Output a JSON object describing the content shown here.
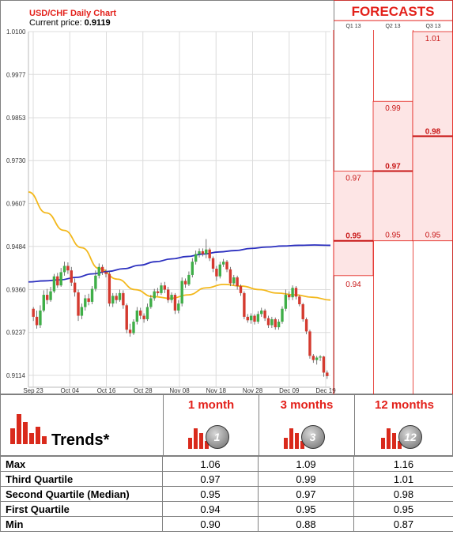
{
  "chart": {
    "title": "USD/CHF Daily Chart",
    "price_label": "Current price:",
    "price_value": "0.9119"
  },
  "forecasts": {
    "title": "FORECASTS",
    "quarters": [
      "Q1 13",
      "Q2 13",
      "Q3 13"
    ]
  },
  "chart_data": [
    {
      "type": "candlestick",
      "title": "USD/CHF Daily Chart",
      "y_ticks": [
        "1.0100",
        "0.9977",
        "0.9853",
        "0.9730",
        "0.9607",
        "0.9484",
        "0.9360",
        "0.9237",
        "0.9114"
      ],
      "x_ticks": [
        "Sep 23",
        "Oct 04",
        "Oct 16",
        "Oct 28",
        "Nov 08",
        "Nov 18",
        "Nov 28",
        "Dec 09",
        "Dec 19"
      ],
      "ylim": [
        0.908,
        1.01
      ],
      "candles": [
        [
          0.9305,
          0.9282,
          0.931,
          0.927
        ],
        [
          0.9282,
          0.9258,
          0.93,
          0.9248
        ],
        [
          0.9258,
          0.93,
          0.9315,
          0.925
        ],
        [
          0.93,
          0.9345,
          0.9358,
          0.9295
        ],
        [
          0.9345,
          0.933,
          0.9362,
          0.9318
        ],
        [
          0.933,
          0.9355,
          0.9368,
          0.9325
        ],
        [
          0.9355,
          0.9398,
          0.9405,
          0.935
        ],
        [
          0.9398,
          0.9372,
          0.9408,
          0.9365
        ],
        [
          0.9372,
          0.941,
          0.9422,
          0.9368
        ],
        [
          0.941,
          0.9428,
          0.944,
          0.94
        ],
        [
          0.9428,
          0.9415,
          0.9438,
          0.9405
        ],
        [
          0.9415,
          0.938,
          0.9425,
          0.937
        ],
        [
          0.938,
          0.9352,
          0.9392,
          0.934
        ],
        [
          0.9352,
          0.9285,
          0.936,
          0.927
        ],
        [
          0.9285,
          0.931,
          0.932,
          0.9275
        ],
        [
          0.931,
          0.9335,
          0.9345,
          0.93
        ],
        [
          0.9335,
          0.9325,
          0.9348,
          0.9315
        ],
        [
          0.9325,
          0.9362,
          0.937,
          0.9318
        ],
        [
          0.9362,
          0.94,
          0.9415,
          0.9355
        ],
        [
          0.94,
          0.9425,
          0.9435,
          0.9392
        ],
        [
          0.9425,
          0.941,
          0.9432,
          0.9402
        ],
        [
          0.941,
          0.9405,
          0.9418,
          0.9395
        ],
        [
          0.9405,
          0.932,
          0.9412,
          0.9312
        ],
        [
          0.932,
          0.9342,
          0.935,
          0.931
        ],
        [
          0.9342,
          0.933,
          0.935,
          0.932
        ],
        [
          0.933,
          0.935,
          0.936,
          0.9325
        ],
        [
          0.935,
          0.9315,
          0.9358,
          0.9305
        ],
        [
          0.9315,
          0.9245,
          0.932,
          0.9235
        ],
        [
          0.9245,
          0.9235,
          0.9262,
          0.9225
        ],
        [
          0.9235,
          0.9268,
          0.9275,
          0.923
        ],
        [
          0.9268,
          0.93,
          0.931,
          0.926
        ],
        [
          0.93,
          0.9285,
          0.9308,
          0.9275
        ],
        [
          0.9285,
          0.9275,
          0.9292,
          0.9265
        ],
        [
          0.9275,
          0.931,
          0.932,
          0.927
        ],
        [
          0.931,
          0.9335,
          0.9345,
          0.9305
        ],
        [
          0.9335,
          0.9355,
          0.9362,
          0.9328
        ],
        [
          0.9355,
          0.935,
          0.9365,
          0.9342
        ],
        [
          0.935,
          0.9372,
          0.938,
          0.9345
        ],
        [
          0.9372,
          0.936,
          0.9382,
          0.935
        ],
        [
          0.936,
          0.933,
          0.9368,
          0.9322
        ],
        [
          0.933,
          0.9345,
          0.9352,
          0.9322
        ],
        [
          0.9345,
          0.93,
          0.935,
          0.929
        ],
        [
          0.93,
          0.932,
          0.933,
          0.9292
        ],
        [
          0.932,
          0.9385,
          0.9395,
          0.9312
        ],
        [
          0.9385,
          0.9375,
          0.9392,
          0.9365
        ],
        [
          0.9375,
          0.9402,
          0.9412,
          0.937
        ],
        [
          0.9402,
          0.944,
          0.945,
          0.9395
        ],
        [
          0.944,
          0.9462,
          0.9472,
          0.9432
        ],
        [
          0.9462,
          0.947,
          0.9478,
          0.9452
        ],
        [
          0.947,
          0.9462,
          0.9478,
          0.9455
        ],
        [
          0.9462,
          0.9475,
          0.9505,
          0.945
        ],
        [
          0.9475,
          0.945,
          0.948,
          0.9442
        ],
        [
          0.945,
          0.942,
          0.9455,
          0.941
        ],
        [
          0.942,
          0.9398,
          0.9428,
          0.9385
        ],
        [
          0.9398,
          0.9432,
          0.944,
          0.9392
        ],
        [
          0.9432,
          0.944,
          0.9448,
          0.9425
        ],
        [
          0.944,
          0.9418,
          0.9445,
          0.941
        ],
        [
          0.9418,
          0.9378,
          0.9425,
          0.937
        ],
        [
          0.9378,
          0.9395,
          0.9402,
          0.9372
        ],
        [
          0.9395,
          0.937,
          0.94,
          0.936
        ],
        [
          0.937,
          0.935,
          0.9375,
          0.9342
        ],
        [
          0.935,
          0.9282,
          0.9355,
          0.9275
        ],
        [
          0.9282,
          0.9272,
          0.929,
          0.9265
        ],
        [
          0.9272,
          0.9285,
          0.9292,
          0.9262
        ],
        [
          0.9285,
          0.9268,
          0.929,
          0.926
        ],
        [
          0.9268,
          0.929,
          0.9298,
          0.9262
        ],
        [
          0.929,
          0.93,
          0.9308,
          0.9282
        ],
        [
          0.93,
          0.9278,
          0.9305,
          0.927
        ],
        [
          0.9278,
          0.9258,
          0.9285,
          0.925
        ],
        [
          0.9258,
          0.9275,
          0.9282,
          0.925
        ],
        [
          0.9275,
          0.9252,
          0.928,
          0.9245
        ],
        [
          0.9252,
          0.9268,
          0.9275,
          0.9245
        ],
        [
          0.9268,
          0.9305,
          0.9312,
          0.9262
        ],
        [
          0.9305,
          0.9345,
          0.936,
          0.9298
        ],
        [
          0.9345,
          0.9338,
          0.9355,
          0.933
        ],
        [
          0.9338,
          0.9365,
          0.9372,
          0.933
        ],
        [
          0.9365,
          0.934,
          0.937,
          0.9332
        ],
        [
          0.934,
          0.9318,
          0.9345,
          0.9312
        ],
        [
          0.9318,
          0.9275,
          0.9322,
          0.9268
        ],
        [
          0.9275,
          0.924,
          0.928,
          0.9232
        ],
        [
          0.924,
          0.917,
          0.9245,
          0.9162
        ],
        [
          0.917,
          0.9158,
          0.9175,
          0.915
        ],
        [
          0.9158,
          0.9165,
          0.917,
          0.9145
        ],
        [
          0.9165,
          0.9168,
          0.9172,
          0.9155
        ],
        [
          0.9168,
          0.9122,
          0.917,
          0.911
        ],
        [
          0.9122,
          0.9112,
          0.9128,
          0.9104
        ]
      ],
      "ma_blue": [
        0.9382,
        0.9385,
        0.9388,
        0.9395,
        0.9405,
        0.9412,
        0.942,
        0.943,
        0.944,
        0.9448,
        0.9455,
        0.9462,
        0.9468,
        0.9472,
        0.9478,
        0.9482,
        0.9485,
        0.9487,
        0.9488,
        0.9487
      ],
      "ma_yellow": [
        0.964,
        0.958,
        0.953,
        0.948,
        0.942,
        0.939,
        0.936,
        0.934,
        0.9335,
        0.9345,
        0.9365,
        0.9375,
        0.937,
        0.936,
        0.935,
        0.9345,
        0.9338,
        0.933
      ]
    },
    {
      "type": "forecast-ranges",
      "title": "FORECASTS",
      "categories": [
        "Q1 13",
        "Q2 13",
        "Q3 13"
      ],
      "series": [
        {
          "name": "Max",
          "values": [
            0.97,
            0.99,
            1.01
          ]
        },
        {
          "name": "Median",
          "values": [
            0.95,
            0.97,
            0.98
          ]
        },
        {
          "name": "Min",
          "values": [
            0.94,
            0.95,
            0.95
          ]
        }
      ],
      "labels": [
        [
          "0.97",
          "0.95",
          "0.94"
        ],
        [
          "0.99",
          "0.97",
          "0.95"
        ],
        [
          "1.01",
          "0.98",
          "0.95"
        ]
      ]
    }
  ],
  "trends": {
    "label": "Trends*",
    "columns": [
      {
        "title": "1 month",
        "icon": "1"
      },
      {
        "title": "3 months",
        "icon": "3"
      },
      {
        "title": "12 months",
        "icon": "12"
      }
    ],
    "rows": [
      {
        "label": "Max",
        "values": [
          "1.06",
          "1.09",
          "1.16"
        ]
      },
      {
        "label": "Third Quartile",
        "values": [
          "0.97",
          "0.99",
          "1.01"
        ]
      },
      {
        "label": "Second Quartile (Median)",
        "values": [
          "0.95",
          "0.97",
          "0.98"
        ]
      },
      {
        "label": "First Quartile",
        "values": [
          "0.94",
          "0.95",
          "0.95"
        ]
      },
      {
        "label": "Min",
        "values": [
          "0.90",
          "0.88",
          "0.87"
        ]
      }
    ]
  },
  "colors": {
    "up": "#3fae48",
    "down": "#d43a2f",
    "ma_blue": "#2b2fbf",
    "ma_yellow": "#f3b81c",
    "accent": "#e3211b",
    "forecast_bg": "#fde5e5"
  }
}
